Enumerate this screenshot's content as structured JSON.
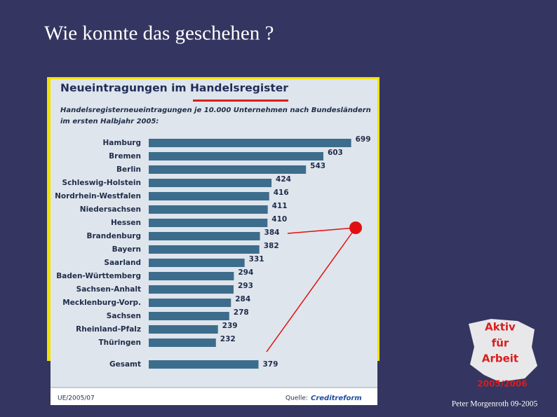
{
  "slide": {
    "title": "Wie konnte das geschehen ?",
    "author": "Peter Morgenroth 09-2005",
    "logo": [
      "Aktiv",
      "für",
      "Arbeit",
      "2005/2006"
    ]
  },
  "chart_data": {
    "type": "bar",
    "orientation": "horizontal",
    "title": "Neueintragungen im Handelsregister",
    "subtitle": [
      "Handelsregisterneueintragungen je 10.000 Unternehmen nach Bundesländern",
      "im ersten Halbjahr 2005:"
    ],
    "categories": [
      "Hamburg",
      "Bremen",
      "Berlin",
      "Schleswig-Holstein",
      "Nordrhein-Westfalen",
      "Niedersachsen",
      "Hessen",
      "Brandenburg",
      "Bayern",
      "Saarland",
      "Baden-Württemberg",
      "Sachsen-Anhalt",
      "Mecklenburg-Vorp.",
      "Sachsen",
      "Rheinland-Pfalz",
      "Thüringen",
      "Gesamt"
    ],
    "values": [
      699,
      603,
      543,
      424,
      416,
      411,
      410,
      384,
      382,
      331,
      294,
      293,
      284,
      278,
      239,
      232,
      379
    ],
    "color": "#3d6d8c",
    "code": "UE/2005/07",
    "source_label": "Quelle:",
    "source": "Creditreform"
  }
}
